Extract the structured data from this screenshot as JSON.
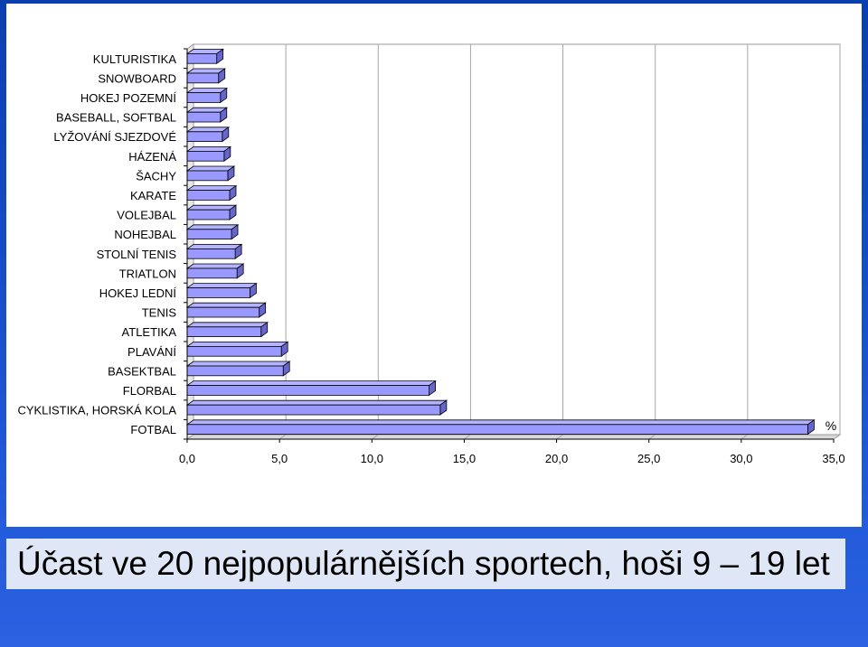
{
  "chart_data": {
    "type": "bar",
    "orientation": "horizontal",
    "title": "Účast ve 20 nejpopulárnějších sportech, hoši 9 – 19 let",
    "unit_label": "%",
    "categories": [
      "KULTURISTIKA",
      "SNOWBOARD",
      "HOKEJ POZEMNÍ",
      "BASEBALL, SOFTBAL",
      "LYŽOVÁNÍ SJEZDOVÉ",
      "HÁZENÁ",
      "ŠACHY",
      "KARATE",
      "VOLEJBAL",
      "NOHEJBAL",
      "STOLNÍ TENIS",
      "TRIATLON",
      "HOKEJ LEDNÍ",
      "TENIS",
      "ATLETIKA",
      "PLAVÁNÍ",
      "BASEKTBAL",
      "FLORBAL",
      "CYKLISTIKA, HORSKÁ KOLA",
      "FOTBAL"
    ],
    "values": [
      1.6,
      1.7,
      1.8,
      1.8,
      1.9,
      2.0,
      2.2,
      2.3,
      2.3,
      2.4,
      2.6,
      2.7,
      3.4,
      3.9,
      4.0,
      5.1,
      5.2,
      13.1,
      13.7,
      33.6
    ],
    "xlim": [
      0,
      35
    ],
    "xticks": [
      "0,0",
      "5,0",
      "10,0",
      "15,0",
      "20,0",
      "25,0",
      "30,0",
      "35,0"
    ],
    "grid": "vertical",
    "bar_color": "#9999ff",
    "bar_edge_color": "#000000"
  }
}
